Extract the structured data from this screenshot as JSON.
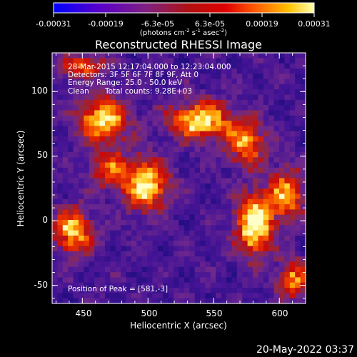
{
  "colorbar": {
    "ticks": [
      "-0.00031",
      "-0.00019",
      "-6.3e-05",
      "6.3e-05",
      "0.00019",
      "0.00031"
    ],
    "units_prefix": "(photons cm",
    "units_exp1": "-2",
    "units_mid1": " s",
    "units_exp2": "-1",
    "units_mid2": " asec",
    "units_exp3": "-2",
    "units_suffix": ")"
  },
  "info": {
    "line1": "28-Mar-2015 12:17:04.000 to 12:23:04.000",
    "line2": "Detectors: 3F 5F 6F 7F 8F 9F, Att 0",
    "line3": "Energy Range: 25.0 - 50.0 keV",
    "line4_algo": "Clean",
    "line4_counts": "Total counts: 9.28E+03",
    "peak": "Position of Peak = [581,-3]"
  },
  "footer_timestamp": "20-May-2022 03:37",
  "chart_data": {
    "type": "heatmap",
    "title": "Reconstructed RHESSI Image",
    "xlabel": "Heliocentric X (arcsec)",
    "ylabel": "Heliocentric Y (arcsec)",
    "xlim": [
      427,
      620
    ],
    "ylim": [
      -64,
      130
    ],
    "xticks": [
      450,
      500,
      550,
      600
    ],
    "yticks": [
      -50,
      0,
      50,
      100
    ],
    "colorbar_range": [
      -0.00031,
      0.00031
    ],
    "colormap": "rhessi-blue-purple-red-yellow-white",
    "grid": false,
    "hotspots": [
      {
        "x": 581,
        "y": -3,
        "amp": 1.0,
        "sx": 9,
        "sy": 16
      },
      {
        "x": 540,
        "y": 78,
        "amp": 0.85,
        "sx": 16,
        "sy": 10
      },
      {
        "x": 498,
        "y": 28,
        "amp": 0.8,
        "sx": 12,
        "sy": 14
      },
      {
        "x": 465,
        "y": 78,
        "amp": 0.8,
        "sx": 13,
        "sy": 12
      },
      {
        "x": 443,
        "y": -8,
        "amp": 0.75,
        "sx": 10,
        "sy": 12
      },
      {
        "x": 605,
        "y": 20,
        "amp": 0.7,
        "sx": 9,
        "sy": 14
      },
      {
        "x": 575,
        "y": 60,
        "amp": 0.65,
        "sx": 10,
        "sy": 12
      },
      {
        "x": 610,
        "y": -45,
        "amp": 0.6,
        "sx": 8,
        "sy": 10
      },
      {
        "x": 450,
        "y": 120,
        "amp": 0.55,
        "sx": 12,
        "sy": 6
      },
      {
        "x": 470,
        "y": 40,
        "amp": 0.5,
        "sx": 10,
        "sy": 10
      }
    ]
  },
  "colors": {
    "background": "#000000",
    "text": "#ffffff"
  }
}
